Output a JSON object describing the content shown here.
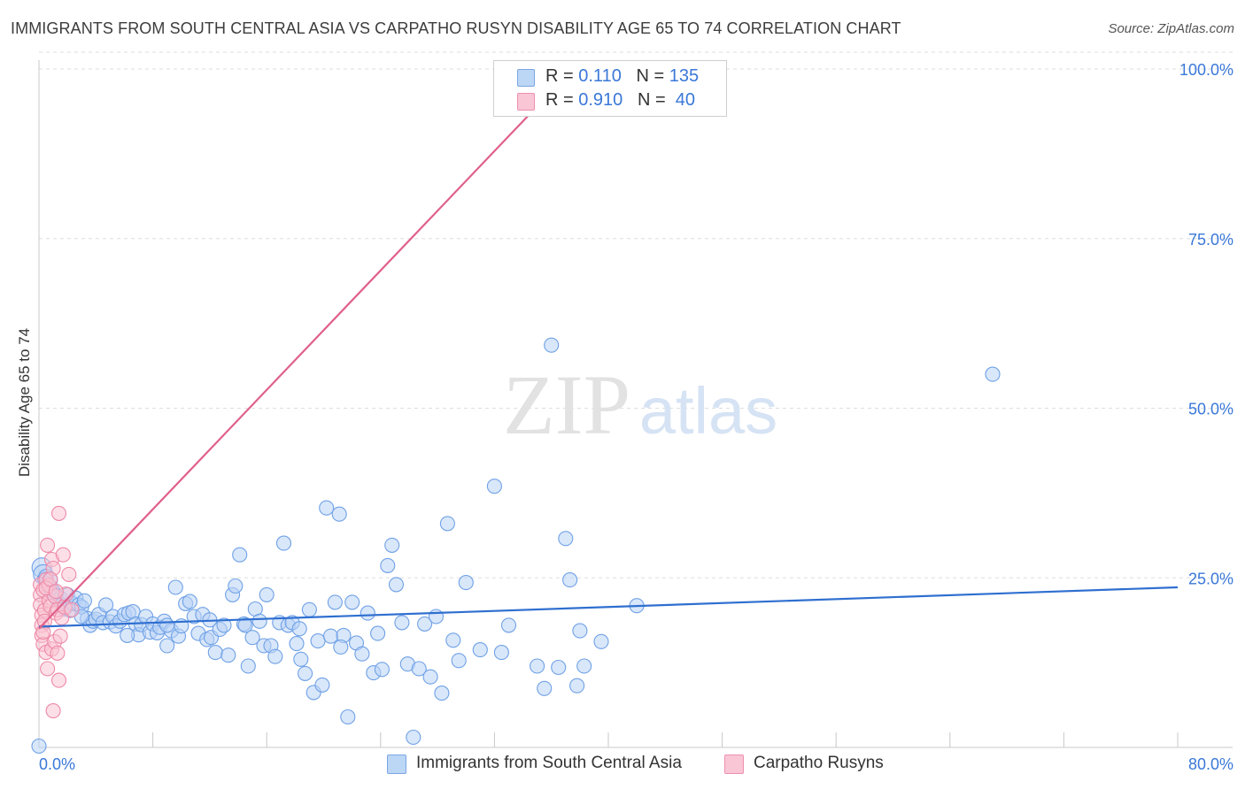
{
  "title": "IMMIGRANTS FROM SOUTH CENTRAL ASIA VS CARPATHO RUSYN DISABILITY AGE 65 TO 74 CORRELATION CHART",
  "source": "Source: ZipAtlas.com",
  "watermark": {
    "zip": "ZIP",
    "atlas": "atlas"
  },
  "legend": {
    "rows": [
      {
        "r_label": "R =",
        "r_value": "0.110",
        "n_label": "N =",
        "n_value": "135",
        "color": "#a8c8f0"
      },
      {
        "r_label": "R =",
        "r_value": "0.910",
        "n_label": "N =",
        "n_value": "40",
        "color": "#f6b8cb"
      }
    ]
  },
  "chart_data": {
    "type": "scatter",
    "xlabel": "",
    "ylabel": "Disability Age 65 to 74",
    "xlim": [
      0,
      80
    ],
    "ylim": [
      0,
      100
    ],
    "x_tick_labels": [
      {
        "x": 0,
        "label": "0.0%"
      },
      {
        "x": 80,
        "label": "80.0%"
      }
    ],
    "y_tick_labels": [
      {
        "y": 25,
        "label": "25.0%"
      },
      {
        "y": 50,
        "label": "50.0%"
      },
      {
        "y": 75,
        "label": "75.0%"
      },
      {
        "y": 100,
        "label": "100.0%"
      }
    ],
    "grid": "horizontal dashed",
    "series": [
      {
        "name": "Immigrants from South Central Asia",
        "color": "#6fa1e6",
        "fill": "#b9d3f5",
        "trend": {
          "x": [
            0,
            80
          ],
          "y": [
            17.8,
            23.6
          ],
          "color": "#2f6fd0"
        },
        "points": [
          [
            0.2,
            26.5
          ],
          [
            0.3,
            25.5
          ],
          [
            0.4,
            24.8
          ],
          [
            0.5,
            25.2
          ],
          [
            0.6,
            24.2
          ],
          [
            0.7,
            23.5
          ],
          [
            0.8,
            24.7
          ],
          [
            1.0,
            23.0
          ],
          [
            1.2,
            22.4
          ],
          [
            1.3,
            21.6
          ],
          [
            1.5,
            22.0
          ],
          [
            1.6,
            21.0
          ],
          [
            1.8,
            20.4
          ],
          [
            2.0,
            22.5
          ],
          [
            2.2,
            20.2
          ],
          [
            2.4,
            21.2
          ],
          [
            2.6,
            22.0
          ],
          [
            2.8,
            21.0
          ],
          [
            3.0,
            20.7
          ],
          [
            3.2,
            21.6
          ],
          [
            3.4,
            19.0
          ],
          [
            3.6,
            18.0
          ],
          [
            3.8,
            18.6
          ],
          [
            4.0,
            18.9
          ],
          [
            4.2,
            19.6
          ],
          [
            4.5,
            18.4
          ],
          [
            4.7,
            21.0
          ],
          [
            5.0,
            18.5
          ],
          [
            5.2,
            19.3
          ],
          [
            5.4,
            17.9
          ],
          [
            5.7,
            18.6
          ],
          [
            6.0,
            19.6
          ],
          [
            6.3,
            19.8
          ],
          [
            6.6,
            20.0
          ],
          [
            6.8,
            18.2
          ],
          [
            7.0,
            16.6
          ],
          [
            7.2,
            18.1
          ],
          [
            7.5,
            19.3
          ],
          [
            7.8,
            17.0
          ],
          [
            8.0,
            18.2
          ],
          [
            8.3,
            16.9
          ],
          [
            8.5,
            17.7
          ],
          [
            8.8,
            18.6
          ],
          [
            9.0,
            15.0
          ],
          [
            9.3,
            17.2
          ],
          [
            9.6,
            23.6
          ],
          [
            9.8,
            16.4
          ],
          [
            10.0,
            17.9
          ],
          [
            10.3,
            21.2
          ],
          [
            10.6,
            21.5
          ],
          [
            10.9,
            19.3
          ],
          [
            11.2,
            16.8
          ],
          [
            11.5,
            19.6
          ],
          [
            11.8,
            15.9
          ],
          [
            12.1,
            16.2
          ],
          [
            12.4,
            14.0
          ],
          [
            12.7,
            17.4
          ],
          [
            13.0,
            18.0
          ],
          [
            13.3,
            13.6
          ],
          [
            13.6,
            22.5
          ],
          [
            13.8,
            23.8
          ],
          [
            14.1,
            28.4
          ],
          [
            14.4,
            18.2
          ],
          [
            14.7,
            12.0
          ],
          [
            15.0,
            16.2
          ],
          [
            15.2,
            20.4
          ],
          [
            15.5,
            18.6
          ],
          [
            15.8,
            15.0
          ],
          [
            16.0,
            22.5
          ],
          [
            16.3,
            15.0
          ],
          [
            16.6,
            13.4
          ],
          [
            16.9,
            18.4
          ],
          [
            17.2,
            30.1
          ],
          [
            17.5,
            18.0
          ],
          [
            17.8,
            18.4
          ],
          [
            18.1,
            15.3
          ],
          [
            18.4,
            13.0
          ],
          [
            18.7,
            10.9
          ],
          [
            19.0,
            20.3
          ],
          [
            19.3,
            8.1
          ],
          [
            19.6,
            15.7
          ],
          [
            19.9,
            9.2
          ],
          [
            20.2,
            35.3
          ],
          [
            20.5,
            16.4
          ],
          [
            20.8,
            21.4
          ],
          [
            21.1,
            34.4
          ],
          [
            21.4,
            16.5
          ],
          [
            21.7,
            4.5
          ],
          [
            22.0,
            21.4
          ],
          [
            22.3,
            15.4
          ],
          [
            22.7,
            13.8
          ],
          [
            23.1,
            19.8
          ],
          [
            23.5,
            11.0
          ],
          [
            23.8,
            16.8
          ],
          [
            24.1,
            11.5
          ],
          [
            24.5,
            26.8
          ],
          [
            24.8,
            29.8
          ],
          [
            25.1,
            24.0
          ],
          [
            25.5,
            18.4
          ],
          [
            25.9,
            12.3
          ],
          [
            26.3,
            1.5
          ],
          [
            26.7,
            11.6
          ],
          [
            27.1,
            18.2
          ],
          [
            27.5,
            10.4
          ],
          [
            27.9,
            19.3
          ],
          [
            28.3,
            8.0
          ],
          [
            28.7,
            33.0
          ],
          [
            29.1,
            15.8
          ],
          [
            29.5,
            12.8
          ],
          [
            30.0,
            24.3
          ],
          [
            31.0,
            14.4
          ],
          [
            32.0,
            38.5
          ],
          [
            32.5,
            14.0
          ],
          [
            33.0,
            18.0
          ],
          [
            35.0,
            12.0
          ],
          [
            35.5,
            8.7
          ],
          [
            36.0,
            59.3
          ],
          [
            36.5,
            11.8
          ],
          [
            37.0,
            30.8
          ],
          [
            37.3,
            24.7
          ],
          [
            37.8,
            9.1
          ],
          [
            38.0,
            17.2
          ],
          [
            38.3,
            12.0
          ],
          [
            39.5,
            15.6
          ],
          [
            42.0,
            20.9
          ],
          [
            67.0,
            55.0
          ],
          [
            0.0,
            0.2
          ],
          [
            3.0,
            19.3
          ],
          [
            6.2,
            16.5
          ],
          [
            9.0,
            18.0
          ],
          [
            12.0,
            18.8
          ],
          [
            14.5,
            18.0
          ],
          [
            18.3,
            17.5
          ],
          [
            21.2,
            14.8
          ],
          [
            0.9,
            22.8
          ]
        ]
      },
      {
        "name": "Carpatho Rusyns",
        "color": "#ee8aa8",
        "fill": "#f9c4d3",
        "trend": {
          "x": [
            0,
            37.5
          ],
          "y": [
            17.5,
            100
          ],
          "color": "#e0608a"
        },
        "points": [
          [
            0.1,
            24.0
          ],
          [
            0.1,
            22.5
          ],
          [
            0.1,
            21.0
          ],
          [
            0.2,
            19.5
          ],
          [
            0.2,
            18.0
          ],
          [
            0.2,
            16.5
          ],
          [
            0.3,
            15.2
          ],
          [
            0.3,
            23.2
          ],
          [
            0.4,
            20.2
          ],
          [
            0.4,
            18.6
          ],
          [
            0.5,
            24.7
          ],
          [
            0.5,
            14.0
          ],
          [
            0.6,
            29.8
          ],
          [
            0.6,
            11.6
          ],
          [
            0.7,
            21.6
          ],
          [
            0.7,
            23.9
          ],
          [
            0.8,
            20.8
          ],
          [
            0.9,
            27.7
          ],
          [
            0.9,
            14.5
          ],
          [
            1.0,
            26.4
          ],
          [
            1.0,
            5.4
          ],
          [
            1.1,
            22.3
          ],
          [
            1.1,
            15.6
          ],
          [
            1.2,
            19.8
          ],
          [
            1.3,
            20.3
          ],
          [
            1.3,
            13.9
          ],
          [
            1.4,
            34.5
          ],
          [
            1.4,
            9.9
          ],
          [
            1.5,
            16.4
          ],
          [
            1.6,
            19.1
          ],
          [
            1.7,
            28.4
          ],
          [
            1.8,
            20.7
          ],
          [
            1.9,
            22.6
          ],
          [
            2.1,
            25.5
          ],
          [
            2.3,
            20.3
          ],
          [
            0.3,
            17.0
          ],
          [
            0.5,
            23.5
          ],
          [
            0.8,
            24.8
          ],
          [
            1.2,
            23.0
          ],
          [
            37.5,
            100.0
          ]
        ]
      }
    ]
  }
}
